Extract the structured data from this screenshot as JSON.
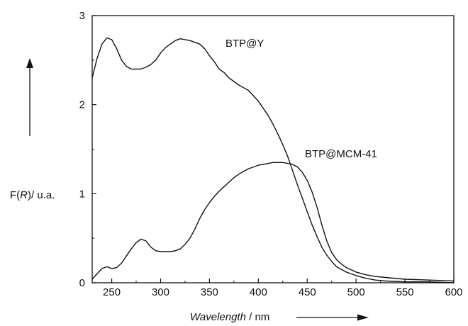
{
  "chart_data": {
    "type": "line",
    "title": "",
    "xlabel": "Wavelength",
    "xlabel_unit": " / nm",
    "ylabel_func": "F(",
    "ylabel_var": "R",
    "ylabel_rest": ")/ u.a.",
    "xlim": [
      230,
      600
    ],
    "ylim": [
      0,
      3
    ],
    "xticks": [
      250,
      300,
      350,
      400,
      450,
      500,
      550,
      600
    ],
    "yticks": [
      0,
      1,
      2,
      3
    ],
    "grid": false,
    "series": [
      {
        "name": "BTP@Y",
        "x": [
          230,
          235,
          240,
          245,
          250,
          255,
          260,
          265,
          270,
          275,
          280,
          285,
          290,
          295,
          300,
          305,
          310,
          315,
          320,
          325,
          330,
          335,
          340,
          345,
          350,
          355,
          360,
          365,
          370,
          375,
          380,
          385,
          390,
          395,
          400,
          405,
          410,
          415,
          420,
          425,
          430,
          435,
          440,
          445,
          450,
          455,
          460,
          465,
          470,
          475,
          480,
          485,
          490,
          500,
          510,
          520,
          530,
          550,
          575,
          600
        ],
        "y": [
          2.3,
          2.52,
          2.68,
          2.75,
          2.73,
          2.63,
          2.5,
          2.43,
          2.4,
          2.4,
          2.4,
          2.42,
          2.45,
          2.5,
          2.58,
          2.64,
          2.68,
          2.72,
          2.74,
          2.73,
          2.72,
          2.7,
          2.68,
          2.63,
          2.55,
          2.48,
          2.4,
          2.36,
          2.3,
          2.26,
          2.22,
          2.19,
          2.16,
          2.1,
          2.04,
          1.96,
          1.88,
          1.78,
          1.67,
          1.55,
          1.42,
          1.26,
          1.1,
          0.95,
          0.8,
          0.65,
          0.52,
          0.4,
          0.31,
          0.24,
          0.18,
          0.15,
          0.12,
          0.08,
          0.05,
          0.03,
          0.02,
          0.01,
          0.01,
          0.0
        ]
      },
      {
        "name": "BTP@MCM-41",
        "x": [
          230,
          235,
          240,
          245,
          250,
          255,
          260,
          265,
          270,
          275,
          280,
          285,
          290,
          295,
          300,
          305,
          310,
          315,
          320,
          325,
          330,
          335,
          340,
          345,
          350,
          355,
          360,
          365,
          370,
          375,
          380,
          385,
          390,
          395,
          400,
          405,
          410,
          415,
          420,
          425,
          430,
          435,
          440,
          445,
          450,
          455,
          460,
          465,
          470,
          475,
          480,
          485,
          490,
          500,
          510,
          520,
          530,
          550,
          575,
          600
        ],
        "y": [
          0.04,
          0.1,
          0.16,
          0.18,
          0.16,
          0.17,
          0.22,
          0.3,
          0.38,
          0.45,
          0.49,
          0.47,
          0.4,
          0.36,
          0.35,
          0.35,
          0.35,
          0.36,
          0.38,
          0.43,
          0.5,
          0.6,
          0.72,
          0.82,
          0.9,
          0.97,
          1.03,
          1.08,
          1.13,
          1.18,
          1.22,
          1.25,
          1.28,
          1.3,
          1.32,
          1.33,
          1.34,
          1.35,
          1.35,
          1.35,
          1.34,
          1.33,
          1.3,
          1.24,
          1.15,
          1.02,
          0.85,
          0.65,
          0.47,
          0.34,
          0.26,
          0.21,
          0.17,
          0.12,
          0.09,
          0.07,
          0.06,
          0.04,
          0.03,
          0.02
        ]
      }
    ],
    "annotations": [
      {
        "text": "BTP@Y",
        "series": 0
      },
      {
        "text": "BTP@MCM-41",
        "series": 1
      }
    ]
  }
}
